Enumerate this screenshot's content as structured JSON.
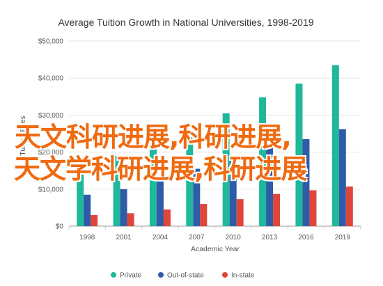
{
  "chart_data": {
    "type": "bar",
    "title": "Average Tuition Growth in National Universities, 1998-2019",
    "xlabel": "Academic Year",
    "ylabel": "Tuition Fees",
    "categories": [
      "1998",
      "2001",
      "2004",
      "2007",
      "2010",
      "2013",
      "2016",
      "2019"
    ],
    "yticks": [
      "$0",
      "$10,000",
      "$20,000",
      "$30,000",
      "$40,000",
      "$50,000"
    ],
    "ylim": [
      0,
      50000
    ],
    "grid": true,
    "legend_position": "bottom",
    "series": [
      {
        "name": "Private",
        "color": "#1fb89a",
        "values": [
          17500,
          19000,
          22500,
          25500,
          30500,
          34800,
          38500,
          43500
        ]
      },
      {
        "name": "Out-of-state",
        "color": "#2f5ca8",
        "values": [
          8500,
          10000,
          12500,
          15500,
          19000,
          22000,
          23500,
          26200
        ]
      },
      {
        "name": "In-state",
        "color": "#e0453a",
        "values": [
          3000,
          3500,
          4500,
          6000,
          7300,
          8700,
          9700,
          10700
        ]
      }
    ]
  },
  "overlay": {
    "line1": "天文科研进展,科研进展,",
    "line2": "天文学科研进展,科研进展"
  }
}
